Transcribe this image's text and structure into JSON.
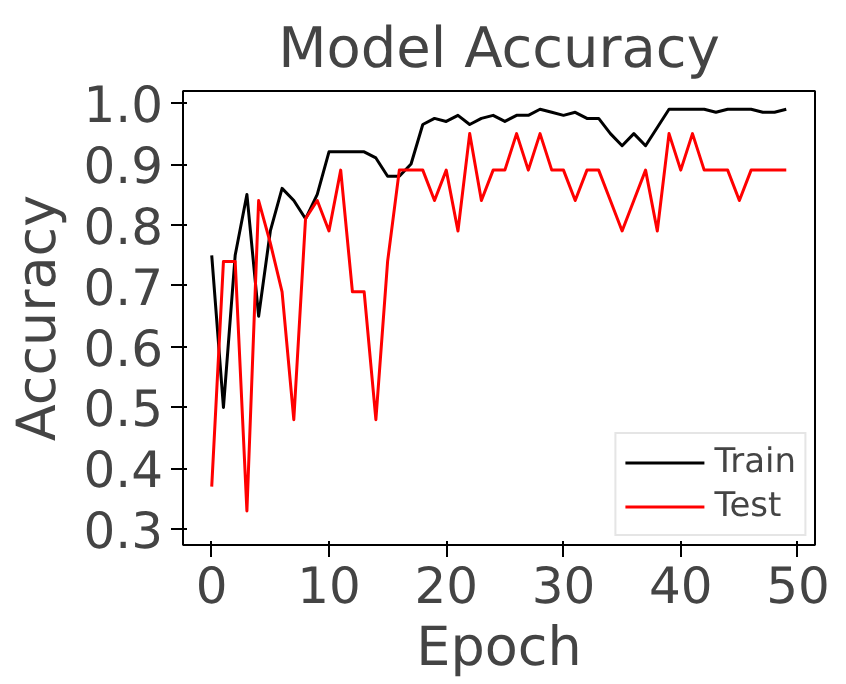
{
  "chart_data": {
    "type": "line",
    "title": "Model Accuracy",
    "xlabel": "Epoch",
    "ylabel": "Accuracy",
    "x": [
      0,
      1,
      2,
      3,
      4,
      5,
      6,
      7,
      8,
      9,
      10,
      11,
      12,
      13,
      14,
      15,
      16,
      17,
      18,
      19,
      20,
      21,
      22,
      23,
      24,
      25,
      26,
      27,
      28,
      29,
      30,
      31,
      32,
      33,
      34,
      35,
      36,
      37,
      38,
      39,
      40,
      41,
      42,
      43,
      44,
      45,
      46,
      47,
      48,
      49
    ],
    "series": [
      {
        "name": "Train",
        "color": "#000000",
        "values": [
          0.75,
          0.5,
          0.75,
          0.85,
          0.65,
          0.79,
          0.86,
          0.84,
          0.81,
          0.85,
          0.92,
          0.92,
          0.92,
          0.92,
          0.91,
          0.88,
          0.88,
          0.9,
          0.965,
          0.975,
          0.97,
          0.98,
          0.965,
          0.975,
          0.98,
          0.97,
          0.98,
          0.98,
          0.99,
          0.985,
          0.98,
          0.985,
          0.975,
          0.975,
          0.95,
          0.93,
          0.95,
          0.93,
          0.96,
          0.99,
          0.99,
          0.99,
          0.99,
          0.985,
          0.99,
          0.99,
          0.99,
          0.985,
          0.985,
          0.99
        ]
      },
      {
        "name": "Test",
        "color": "#ff0000",
        "values": [
          0.37,
          0.74,
          0.74,
          0.33,
          0.84,
          0.77,
          0.69,
          0.48,
          0.81,
          0.84,
          0.79,
          0.89,
          0.69,
          0.69,
          0.48,
          0.74,
          0.89,
          0.89,
          0.89,
          0.84,
          0.89,
          0.79,
          0.95,
          0.84,
          0.89,
          0.89,
          0.95,
          0.89,
          0.95,
          0.89,
          0.89,
          0.84,
          0.89,
          0.89,
          0.84,
          0.79,
          0.84,
          0.89,
          0.79,
          0.95,
          0.89,
          0.95,
          0.89,
          0.89,
          0.89,
          0.84,
          0.89,
          0.89,
          0.89,
          0.89
        ]
      }
    ],
    "xlim": [
      -2.45,
      51.45
    ],
    "ylim": [
      0.274,
      1.02
    ],
    "xticks": [
      0,
      10,
      20,
      30,
      40,
      50
    ],
    "yticks": [
      {
        "value": 0.3,
        "label": "0.3"
      },
      {
        "value": 0.4,
        "label": "0.4"
      },
      {
        "value": 0.5,
        "label": "0.5"
      },
      {
        "value": 0.6,
        "label": "0.6"
      },
      {
        "value": 0.7,
        "label": "0.7"
      },
      {
        "value": 0.8,
        "label": "0.8"
      },
      {
        "value": 0.9,
        "label": "0.9"
      },
      {
        "value": 1.0,
        "label": "1.0"
      }
    ],
    "legend": "bottom right",
    "grid": false,
    "marker": "none",
    "line_style": "solid"
  }
}
